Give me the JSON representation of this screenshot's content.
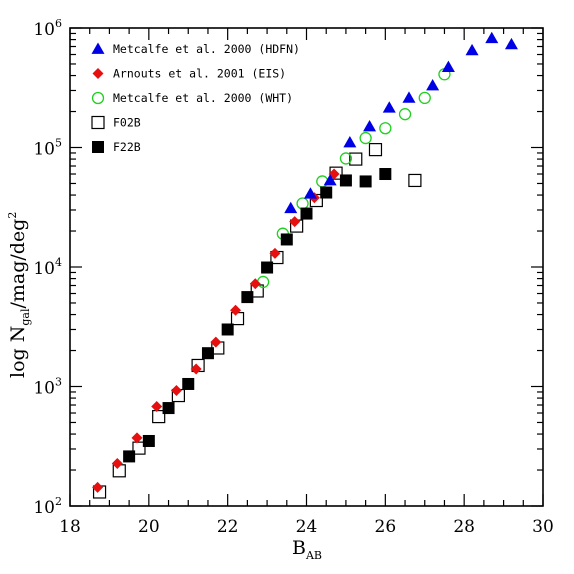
{
  "chart_data": {
    "type": "scatter",
    "xlabel": "B",
    "xlabel_sub": "AB",
    "ylabel_parts": [
      "log N",
      "gal",
      "/mag/deg",
      "2"
    ],
    "xlim": [
      18,
      30
    ],
    "ylim": [
      100,
      1000000
    ],
    "yscale": "log",
    "grid": false,
    "legend_position": "top-left",
    "x_ticks": [
      18,
      20,
      22,
      24,
      26,
      28,
      30
    ],
    "y_ticks": [
      {
        "value": 100,
        "base": "10",
        "exp": "2"
      },
      {
        "value": 1000,
        "base": "10",
        "exp": "3"
      },
      {
        "value": 10000,
        "base": "10",
        "exp": "4"
      },
      {
        "value": 100000,
        "base": "10",
        "exp": "5"
      },
      {
        "value": 1000000,
        "base": "10",
        "exp": "6"
      }
    ],
    "series": [
      {
        "name": "Metcalfe et al. 2000 (HDFN)",
        "marker": "triangle",
        "color": "#0000e6",
        "filled": true,
        "points": [
          [
            23.6,
            31000
          ],
          [
            24.1,
            41000
          ],
          [
            24.6,
            53000
          ],
          [
            25.1,
            110000
          ],
          [
            25.6,
            150000
          ],
          [
            26.1,
            215000
          ],
          [
            26.6,
            260000
          ],
          [
            27.2,
            330000
          ],
          [
            27.6,
            470000
          ],
          [
            28.2,
            650000
          ],
          [
            28.7,
            820000
          ],
          [
            29.2,
            730000
          ]
        ]
      },
      {
        "name": "Arnouts et al. 2001 (EIS)",
        "marker": "diamond",
        "color": "#e61010",
        "filled": true,
        "points": [
          [
            18.7,
            143
          ],
          [
            19.2,
            227
          ],
          [
            19.7,
            372
          ],
          [
            20.2,
            680
          ],
          [
            20.7,
            925
          ],
          [
            21.2,
            1400
          ],
          [
            21.7,
            2350
          ],
          [
            22.2,
            4350
          ],
          [
            22.7,
            7250
          ],
          [
            23.2,
            13000
          ],
          [
            23.7,
            24000
          ],
          [
            24.2,
            38000
          ],
          [
            24.7,
            60000
          ]
        ]
      },
      {
        "name": "Metcalfe et al. 2000 (WHT)",
        "marker": "circle",
        "color": "#1fd01f",
        "filled": false,
        "points": [
          [
            22.9,
            7500
          ],
          [
            23.4,
            19000
          ],
          [
            23.9,
            34000
          ],
          [
            24.4,
            52000
          ],
          [
            25.0,
            81000
          ],
          [
            25.5,
            120000
          ],
          [
            26.0,
            145000
          ],
          [
            26.5,
            190000
          ],
          [
            27.0,
            260000
          ],
          [
            27.5,
            410000
          ]
        ]
      },
      {
        "name": "F02B",
        "marker": "square",
        "color": "#000000",
        "filled": false,
        "points": [
          [
            18.75,
            131
          ],
          [
            19.25,
            197
          ],
          [
            19.75,
            305
          ],
          [
            20.25,
            560
          ],
          [
            20.75,
            840
          ],
          [
            21.25,
            1500
          ],
          [
            21.75,
            2100
          ],
          [
            22.25,
            3700
          ],
          [
            22.75,
            6300
          ],
          [
            23.25,
            12000
          ],
          [
            23.75,
            22000
          ],
          [
            24.25,
            36000
          ],
          [
            24.75,
            61000
          ],
          [
            25.25,
            80000
          ],
          [
            25.75,
            96000
          ],
          [
            26.75,
            53000
          ]
        ]
      },
      {
        "name": "F22B",
        "marker": "square",
        "color": "#000000",
        "filled": true,
        "points": [
          [
            19.5,
            260
          ],
          [
            20.0,
            350
          ],
          [
            20.5,
            660
          ],
          [
            21.0,
            1050
          ],
          [
            21.5,
            1900
          ],
          [
            22.0,
            3000
          ],
          [
            22.5,
            5600
          ],
          [
            23.0,
            9900
          ],
          [
            23.5,
            17000
          ],
          [
            24.0,
            28000
          ],
          [
            24.5,
            42000
          ],
          [
            25.0,
            53000
          ],
          [
            25.5,
            52000
          ],
          [
            26.0,
            60000
          ]
        ]
      }
    ]
  }
}
